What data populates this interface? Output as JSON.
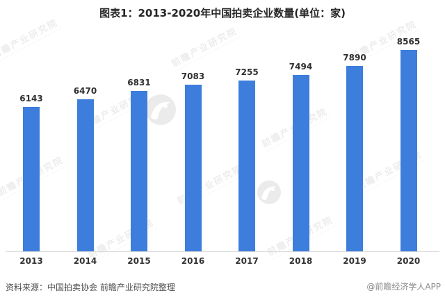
{
  "title": "图表1：2013-2020年中国拍卖企业数量(单位：家)",
  "source_note": "资料来源：中国拍卖协会 前瞻产业研究院整理",
  "credit": "@前瞻经济学人APP",
  "watermark_text": "前瞻产业研究院",
  "colors": {
    "bar": "#3D7DDB",
    "axis_line": "#d9d9d9",
    "value_label": "#303030",
    "tick_label": "#333333",
    "credit_text": "#8c8c8c",
    "watermark": "rgba(0,0,0,0.075)"
  },
  "chart_data": {
    "type": "bar",
    "title": "图表1：2013-2020年中国拍卖企业数量(单位：家)",
    "categories": [
      "2013",
      "2014",
      "2015",
      "2016",
      "2017",
      "2018",
      "2019",
      "2020"
    ],
    "values": [
      6143,
      6470,
      6831,
      7083,
      7255,
      7494,
      7890,
      8565
    ],
    "xlabel": "",
    "ylabel": "",
    "unit": "家",
    "ylim": [
      0,
      8565
    ],
    "grid": false,
    "legend": false,
    "value_labels": true,
    "bar_color": "#3D7DDB"
  }
}
